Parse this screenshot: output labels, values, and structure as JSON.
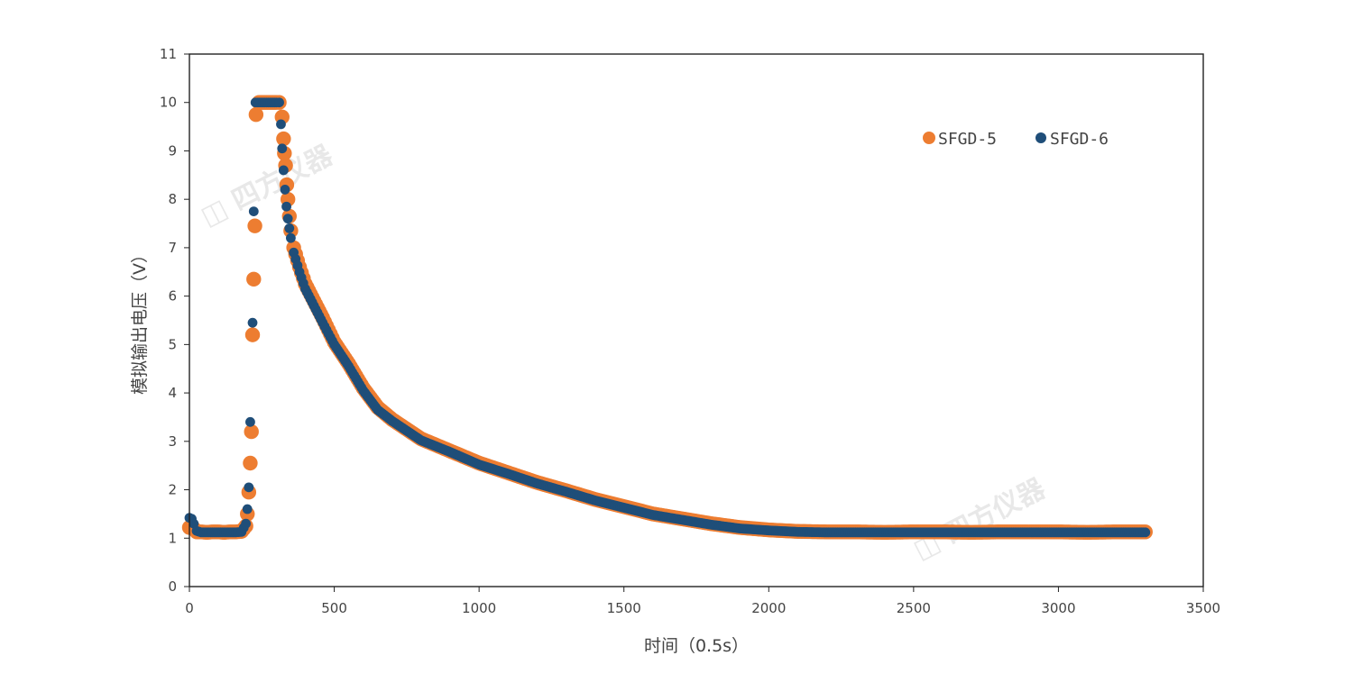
{
  "chart_data": {
    "type": "scatter",
    "title": "",
    "xlabel": "时间（0.5s）",
    "ylabel": "模拟输出电压（V）",
    "xlim": [
      0,
      3500
    ],
    "ylim": [
      0,
      11
    ],
    "xticks": [
      0,
      500,
      1000,
      1500,
      2000,
      2500,
      3000,
      3500
    ],
    "yticks": [
      0,
      1,
      2,
      3,
      4,
      5,
      6,
      7,
      8,
      9,
      10,
      11
    ],
    "grid": false,
    "legend_position": "top-right",
    "watermark": "四方仪器",
    "series": [
      {
        "name": "SFGD-5",
        "color": "#ED7D31",
        "marker_size": "large",
        "points": [
          [
            0,
            1.22
          ],
          [
            8,
            1.26
          ],
          [
            15,
            1.2
          ],
          [
            25,
            1.13
          ],
          [
            40,
            1.13
          ],
          [
            60,
            1.12
          ],
          [
            80,
            1.13
          ],
          [
            100,
            1.13
          ],
          [
            120,
            1.12
          ],
          [
            140,
            1.13
          ],
          [
            160,
            1.13
          ],
          [
            180,
            1.14
          ],
          [
            195,
            1.25
          ],
          [
            200,
            1.5
          ],
          [
            205,
            1.95
          ],
          [
            210,
            2.55
          ],
          [
            214,
            3.2
          ],
          [
            218,
            5.2
          ],
          [
            222,
            6.35
          ],
          [
            226,
            7.45
          ],
          [
            230,
            9.75
          ],
          [
            240,
            10
          ],
          [
            260,
            10
          ],
          [
            280,
            10
          ],
          [
            300,
            10
          ],
          [
            310,
            10
          ],
          [
            320,
            9.7
          ],
          [
            325,
            9.25
          ],
          [
            328,
            8.95
          ],
          [
            332,
            8.7
          ],
          [
            336,
            8.3
          ],
          [
            340,
            8.0
          ],
          [
            345,
            7.65
          ],
          [
            350,
            7.35
          ],
          [
            360,
            7.0
          ],
          [
            380,
            6.6
          ],
          [
            400,
            6.25
          ],
          [
            430,
            5.9
          ],
          [
            460,
            5.55
          ],
          [
            500,
            5.05
          ],
          [
            550,
            4.6
          ],
          [
            600,
            4.1
          ],
          [
            650,
            3.7
          ],
          [
            700,
            3.45
          ],
          [
            750,
            3.25
          ],
          [
            800,
            3.05
          ],
          [
            900,
            2.8
          ],
          [
            1000,
            2.55
          ],
          [
            1100,
            2.35
          ],
          [
            1200,
            2.15
          ],
          [
            1300,
            1.98
          ],
          [
            1400,
            1.8
          ],
          [
            1500,
            1.65
          ],
          [
            1600,
            1.5
          ],
          [
            1700,
            1.4
          ],
          [
            1800,
            1.3
          ],
          [
            1900,
            1.22
          ],
          [
            2000,
            1.17
          ],
          [
            2100,
            1.14
          ],
          [
            2200,
            1.13
          ],
          [
            2300,
            1.13
          ],
          [
            2400,
            1.12
          ],
          [
            2500,
            1.13
          ],
          [
            2600,
            1.13
          ],
          [
            2700,
            1.12
          ],
          [
            2800,
            1.13
          ],
          [
            2900,
            1.13
          ],
          [
            3000,
            1.13
          ],
          [
            3100,
            1.12
          ],
          [
            3200,
            1.13
          ],
          [
            3300,
            1.13
          ]
        ]
      },
      {
        "name": "SFGD-6",
        "color": "#1F4E79",
        "marker_size": "small",
        "points": [
          [
            0,
            1.42
          ],
          [
            8,
            1.4
          ],
          [
            15,
            1.3
          ],
          [
            25,
            1.15
          ],
          [
            40,
            1.12
          ],
          [
            60,
            1.12
          ],
          [
            80,
            1.12
          ],
          [
            100,
            1.12
          ],
          [
            120,
            1.12
          ],
          [
            140,
            1.12
          ],
          [
            160,
            1.12
          ],
          [
            180,
            1.13
          ],
          [
            195,
            1.3
          ],
          [
            200,
            1.6
          ],
          [
            205,
            2.05
          ],
          [
            210,
            3.4
          ],
          [
            218,
            5.45
          ],
          [
            222,
            7.75
          ],
          [
            228,
            10
          ],
          [
            240,
            10
          ],
          [
            260,
            10
          ],
          [
            280,
            10
          ],
          [
            300,
            10
          ],
          [
            310,
            10
          ],
          [
            316,
            9.55
          ],
          [
            320,
            9.05
          ],
          [
            325,
            8.6
          ],
          [
            330,
            8.2
          ],
          [
            335,
            7.85
          ],
          [
            340,
            7.6
          ],
          [
            345,
            7.4
          ],
          [
            350,
            7.2
          ],
          [
            360,
            6.9
          ],
          [
            380,
            6.5
          ],
          [
            400,
            6.15
          ],
          [
            430,
            5.8
          ],
          [
            460,
            5.45
          ],
          [
            500,
            5.0
          ],
          [
            550,
            4.55
          ],
          [
            600,
            4.05
          ],
          [
            650,
            3.65
          ],
          [
            700,
            3.42
          ],
          [
            750,
            3.22
          ],
          [
            800,
            3.02
          ],
          [
            900,
            2.78
          ],
          [
            1000,
            2.52
          ],
          [
            1100,
            2.33
          ],
          [
            1200,
            2.13
          ],
          [
            1300,
            1.96
          ],
          [
            1400,
            1.78
          ],
          [
            1500,
            1.63
          ],
          [
            1600,
            1.48
          ],
          [
            1700,
            1.38
          ],
          [
            1800,
            1.28
          ],
          [
            1900,
            1.2
          ],
          [
            2000,
            1.16
          ],
          [
            2100,
            1.13
          ],
          [
            2200,
            1.12
          ],
          [
            2300,
            1.12
          ],
          [
            2400,
            1.12
          ],
          [
            2500,
            1.12
          ],
          [
            2600,
            1.12
          ],
          [
            2700,
            1.12
          ],
          [
            2800,
            1.12
          ],
          [
            2900,
            1.12
          ],
          [
            3000,
            1.12
          ],
          [
            3100,
            1.12
          ],
          [
            3200,
            1.12
          ],
          [
            3300,
            1.12
          ]
        ]
      }
    ]
  }
}
